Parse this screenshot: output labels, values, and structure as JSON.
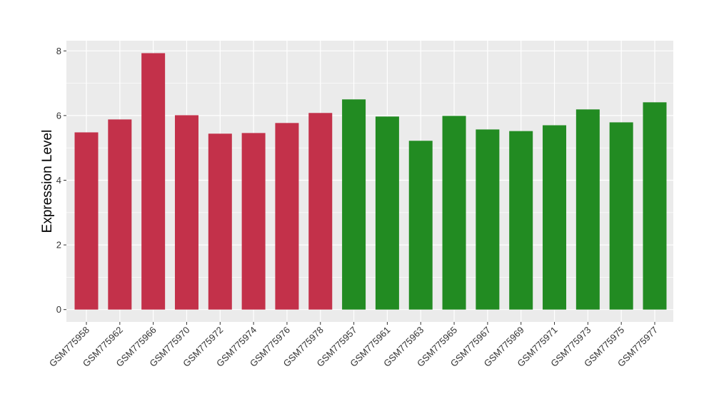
{
  "chart_data": {
    "type": "bar",
    "title": "",
    "xlabel": "",
    "ylabel": "Expression Level",
    "ylim": [
      -0.35,
      8.3
    ],
    "yticks": [
      0,
      2,
      4,
      6,
      8
    ],
    "grid": true,
    "legend": "none",
    "categories": [
      "GSM775958",
      "GSM775962",
      "GSM775966",
      "GSM775970",
      "GSM775972",
      "GSM775974",
      "GSM775976",
      "GSM775978",
      "GSM775957",
      "GSM775961",
      "GSM775963",
      "GSM775965",
      "GSM775967",
      "GSM775969",
      "GSM775971",
      "GSM775973",
      "GSM775975",
      "GSM775977"
    ],
    "values": [
      5.48,
      5.88,
      7.93,
      6.01,
      5.44,
      5.46,
      5.77,
      6.08,
      6.5,
      5.97,
      5.22,
      5.99,
      5.57,
      5.52,
      5.7,
      6.19,
      5.79,
      6.41
    ],
    "bar_colors": [
      "#C3314A",
      "#C3314A",
      "#C3314A",
      "#C3314A",
      "#C3314A",
      "#C3314A",
      "#C3314A",
      "#C3314A",
      "#228B22",
      "#228B22",
      "#228B22",
      "#228B22",
      "#228B22",
      "#228B22",
      "#228B22",
      "#228B22",
      "#228B22",
      "#228B22"
    ],
    "panel_background": "#EBEBEB",
    "grid_color": "#FFFFFF"
  }
}
